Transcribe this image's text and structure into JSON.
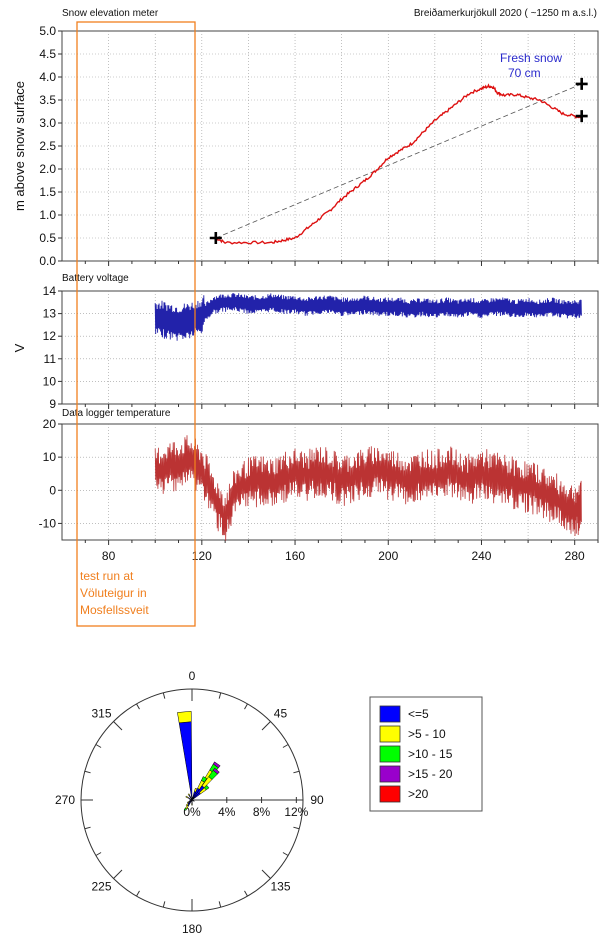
{
  "header": {
    "left_title": "Snow elevation  meter",
    "right_title": "Breiðamerkurjökull 2020 ( ~1250 m a.s.l.)"
  },
  "annotations": {
    "fresh_snow_line1": "Fresh snow",
    "fresh_snow_line2": "70 cm",
    "test_run_lines": [
      "test run at",
      "Völuteigur in",
      "Mosfellssveit"
    ]
  },
  "colors": {
    "snow": "#dd1111",
    "battery": "#2222aa",
    "temperature": "#bb3333",
    "annotation_orange": "#f07f1e",
    "annotation_blue": "#2a2acc"
  },
  "chart_data": [
    {
      "type": "line",
      "title": "Snow elevation  meter",
      "ylabel": "m above snow surface",
      "xlim": [
        60,
        290
      ],
      "ylim": [
        0,
        5
      ],
      "yticks": [
        "0.0",
        "0.5",
        "1.0",
        "1.5",
        "2.0",
        "2.5",
        "3.0",
        "3.5",
        "4.0",
        "4.5",
        "5.0"
      ],
      "series": [
        {
          "x": [
            126,
            130,
            140,
            150,
            155,
            160,
            165,
            170,
            175,
            180,
            185,
            190,
            195,
            200,
            205,
            210,
            215,
            220,
            225,
            230,
            235,
            240,
            243,
            245,
            247,
            250,
            255,
            260,
            265,
            270,
            275,
            280,
            283
          ],
          "values": [
            0.5,
            0.4,
            0.4,
            0.4,
            0.45,
            0.5,
            0.7,
            0.9,
            1.1,
            1.35,
            1.55,
            1.75,
            1.98,
            2.25,
            2.4,
            2.55,
            2.8,
            3.05,
            3.25,
            3.45,
            3.65,
            3.75,
            3.8,
            3.78,
            3.65,
            3.6,
            3.62,
            3.55,
            3.5,
            3.35,
            3.2,
            3.15,
            3.12
          ]
        }
      ],
      "reference_line": {
        "x": [
          126,
          283
        ],
        "values": [
          0.5,
          3.85
        ]
      },
      "markers": [
        {
          "x": 126,
          "value": 0.5
        },
        {
          "x": 283,
          "value": 3.85
        },
        {
          "x": 283,
          "value": 3.15
        }
      ]
    },
    {
      "type": "line",
      "title": "Battery voltage",
      "ylabel": "V",
      "xlim": [
        60,
        290
      ],
      "ylim": [
        9,
        14
      ],
      "yticks": [
        "9",
        "10",
        "11",
        "12",
        "13",
        "14"
      ],
      "series": [
        {
          "x": [
            100,
            105,
            110,
            115,
            120,
            125,
            130,
            135,
            140,
            145,
            150,
            155,
            160,
            165,
            170,
            175,
            180,
            185,
            190,
            195,
            200,
            205,
            210,
            215,
            220,
            225,
            230,
            235,
            240,
            245,
            250,
            255,
            260,
            265,
            270,
            275,
            280,
            283
          ],
          "values": [
            12.8,
            12.7,
            12.6,
            12.7,
            12.9,
            13.4,
            13.5,
            13.5,
            13.4,
            13.4,
            13.5,
            13.4,
            13.4,
            13.3,
            13.4,
            13.4,
            13.3,
            13.3,
            13.4,
            13.3,
            13.3,
            13.3,
            13.2,
            13.3,
            13.2,
            13.3,
            13.2,
            13.3,
            13.2,
            13.3,
            13.3,
            13.2,
            13.3,
            13.2,
            13.3,
            13.2,
            13.2,
            13.2
          ]
        }
      ]
    },
    {
      "type": "line",
      "title": "Data logger temperature",
      "xlim": [
        60,
        290
      ],
      "ylim": [
        -15,
        20
      ],
      "yticks": [
        "-10",
        "0",
        "10",
        "20"
      ],
      "xticks": [
        "80",
        "120",
        "160",
        "200",
        "240",
        "280"
      ],
      "series": [
        {
          "x": [
            100,
            105,
            110,
            115,
            120,
            125,
            130,
            135,
            140,
            145,
            150,
            155,
            160,
            165,
            170,
            175,
            180,
            185,
            190,
            195,
            200,
            205,
            210,
            215,
            220,
            225,
            230,
            235,
            240,
            245,
            250,
            255,
            260,
            265,
            270,
            275,
            280,
            283
          ],
          "values": [
            5,
            7,
            8,
            9,
            6,
            -2,
            -8,
            0,
            2,
            3,
            2,
            4,
            5,
            4,
            6,
            5,
            3,
            4,
            5,
            6,
            5,
            4,
            3,
            5,
            4,
            6,
            4,
            3,
            5,
            4,
            3,
            2,
            1,
            0,
            -2,
            -4,
            -6,
            -5
          ]
        }
      ]
    },
    {
      "type": "wind_rose",
      "direction_labels": [
        "0",
        "45",
        "90",
        "135",
        "180",
        "225",
        "270",
        "315"
      ],
      "radial_labels": [
        "0%",
        "4%",
        "8%",
        "12%"
      ],
      "legend": [
        {
          "label": "<=5",
          "color": "#0000ff"
        },
        {
          "label": ">5 - 10",
          "color": "#ffff00"
        },
        {
          "label": ">10 - 15",
          "color": "#00ff00"
        },
        {
          "label": ">15 - 20",
          "color": "#9900cc"
        },
        {
          "label": ">20",
          "color": "#ff0000"
        }
      ],
      "petals": [
        {
          "direction": 355,
          "speed_bins": [
            9.0,
            1.2
          ]
        },
        {
          "direction": 35,
          "speed_bins": [
            2.5,
            1.5,
            0.8,
            0.3
          ]
        },
        {
          "direction": 40,
          "speed_bins": [
            2.0,
            1.3,
            0.9,
            0.3
          ]
        },
        {
          "direction": 30,
          "speed_bins": [
            1.5,
            1.0,
            0.5
          ]
        },
        {
          "direction": 50,
          "speed_bins": [
            1.2,
            0.8,
            0.4
          ]
        },
        {
          "direction": 20,
          "speed_bins": [
            1.0,
            0.4
          ]
        },
        {
          "direction": 215,
          "speed_bins": [
            0.8,
            0.4,
            0.2
          ]
        },
        {
          "direction": 225,
          "speed_bins": [
            0.6,
            0.3
          ]
        },
        {
          "direction": 240,
          "speed_bins": [
            0.4,
            0.2
          ]
        },
        {
          "direction": 300,
          "speed_bins": [
            0.5,
            0.3
          ]
        },
        {
          "direction": 330,
          "speed_bins": [
            0.6,
            0.2
          ]
        },
        {
          "direction": 180,
          "speed_bins": [
            0.4,
            0.2
          ]
        },
        {
          "direction": 120,
          "speed_bins": [
            0.3
          ]
        },
        {
          "direction": 270,
          "speed_bins": [
            0.3
          ]
        }
      ]
    }
  ]
}
